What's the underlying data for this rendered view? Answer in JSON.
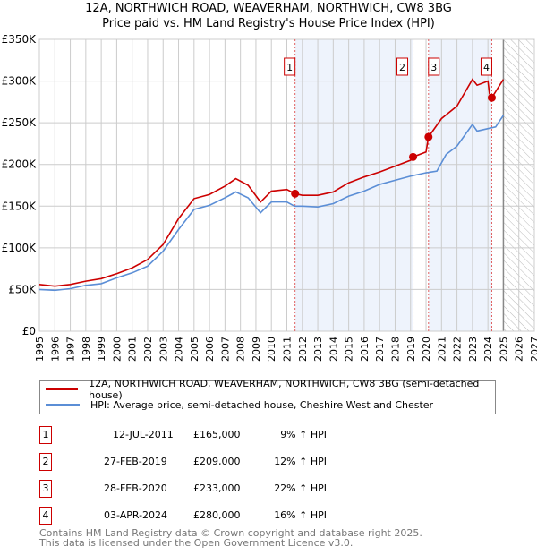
{
  "chart_data": {
    "type": "line",
    "title": "12A, NORTHWICH ROAD, WEAVERHAM, NORTHWICH, CW8 3BG",
    "subtitle": "Price paid vs. HM Land Registry's House Price Index (HPI)",
    "xlim": [
      1995,
      2027
    ],
    "ylim": [
      0,
      350000
    ],
    "x_ticks": [
      "1995",
      "1996",
      "1997",
      "1998",
      "1999",
      "2000",
      "2001",
      "2002",
      "2003",
      "2004",
      "2005",
      "2006",
      "2007",
      "2008",
      "2009",
      "2010",
      "2011",
      "2012",
      "2013",
      "2014",
      "2015",
      "2016",
      "2017",
      "2018",
      "2019",
      "2020",
      "2021",
      "2022",
      "2023",
      "2024",
      "2025",
      "2026",
      "2027"
    ],
    "y_ticks": [
      {
        "v": 0,
        "label": "£0"
      },
      {
        "v": 50000,
        "label": "£50K"
      },
      {
        "v": 100000,
        "label": "£100K"
      },
      {
        "v": 150000,
        "label": "£150K"
      },
      {
        "v": 200000,
        "label": "£200K"
      },
      {
        "v": 250000,
        "label": "£250K"
      },
      {
        "v": 300000,
        "label": "£300K"
      },
      {
        "v": 350000,
        "label": "£350K"
      }
    ],
    "grid": true,
    "forecast_from": 2025,
    "series": [
      {
        "name": "12A, NORTHWICH ROAD, WEAVERHAM, NORTHWICH, CW8 3BG (semi-detached house)",
        "color": "#cc0000",
        "x": [
          1995,
          1996,
          1997,
          1998,
          1999,
          2000,
          2001,
          2002,
          2003,
          2004,
          2005,
          2006,
          2007,
          2007.7,
          2008.5,
          2009.3,
          2010,
          2011,
          2011.53,
          2012,
          2013,
          2014,
          2015,
          2016,
          2017,
          2018,
          2019,
          2019.16,
          2020,
          2020.16,
          2021,
          2022,
          2023,
          2023.3,
          2024,
          2024.1,
          2024.25,
          2025
        ],
        "y": [
          56000,
          54000,
          56000,
          60000,
          63000,
          69000,
          76000,
          86000,
          104000,
          135000,
          159000,
          164000,
          174000,
          183000,
          175000,
          155000,
          168000,
          170000,
          165000,
          163000,
          163000,
          167000,
          178000,
          185000,
          191000,
          198000,
          205000,
          209000,
          215000,
          233000,
          255000,
          270000,
          302000,
          295000,
          300000,
          285000,
          280000,
          302000
        ]
      },
      {
        "name": "HPI: Average price, semi-detached house, Cheshire West and Chester",
        "color": "#5b8ed6",
        "x": [
          1995,
          1996,
          1997,
          1998,
          1999,
          2000,
          2001,
          2002,
          2003,
          2004,
          2005,
          2006,
          2007,
          2007.7,
          2008.5,
          2009.3,
          2010,
          2011,
          2011.5,
          2012,
          2013,
          2014,
          2015,
          2016,
          2017,
          2018,
          2019,
          2020,
          2020.7,
          2021.3,
          2022,
          2023,
          2023.3,
          2024,
          2024.5,
          2025
        ],
        "y": [
          50000,
          49000,
          51000,
          55000,
          57000,
          64000,
          70000,
          78000,
          96000,
          122000,
          146000,
          151000,
          160000,
          167000,
          160000,
          142000,
          155000,
          155000,
          150000,
          150000,
          149000,
          153000,
          162000,
          168000,
          176000,
          181000,
          186000,
          190000,
          192000,
          212000,
          222000,
          248000,
          240000,
          243000,
          245000,
          259000
        ]
      }
    ],
    "sales": [
      {
        "id": "1",
        "date": "12-JUL-2011",
        "price": "£165,000",
        "hpi": "9% ↑ HPI",
        "x": 2011.53,
        "y": 165000
      },
      {
        "id": "2",
        "date": "27-FEB-2019",
        "price": "£209,000",
        "hpi": "12% ↑ HPI",
        "x": 2019.16,
        "y": 209000
      },
      {
        "id": "3",
        "date": "28-FEB-2020",
        "price": "£233,000",
        "hpi": "22% ↑ HPI",
        "x": 2020.16,
        "y": 233000
      },
      {
        "id": "4",
        "date": "03-APR-2024",
        "price": "£280,000",
        "hpi": "16% ↑ HPI",
        "x": 2024.25,
        "y": 280000
      }
    ]
  },
  "footer": {
    "line1": "Contains HM Land Registry data © Crown copyright and database right 2025.",
    "line2": "This data is licensed under the Open Government Licence v3.0."
  }
}
